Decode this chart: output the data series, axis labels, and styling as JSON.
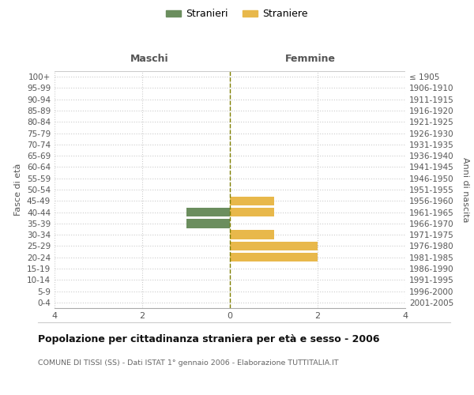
{
  "age_groups": [
    "100+",
    "95-99",
    "90-94",
    "85-89",
    "80-84",
    "75-79",
    "70-74",
    "65-69",
    "60-64",
    "55-59",
    "50-54",
    "45-49",
    "40-44",
    "35-39",
    "30-34",
    "25-29",
    "20-24",
    "15-19",
    "10-14",
    "5-9",
    "0-4"
  ],
  "birth_years": [
    "≤ 1905",
    "1906-1910",
    "1911-1915",
    "1916-1920",
    "1921-1925",
    "1926-1930",
    "1931-1935",
    "1936-1940",
    "1941-1945",
    "1946-1950",
    "1951-1955",
    "1956-1960",
    "1961-1965",
    "1966-1970",
    "1971-1975",
    "1976-1980",
    "1981-1985",
    "1986-1990",
    "1991-1995",
    "1996-2000",
    "2001-2005"
  ],
  "maschi": [
    0,
    0,
    0,
    0,
    0,
    0,
    0,
    0,
    0,
    0,
    0,
    0,
    -1,
    -1,
    0,
    0,
    0,
    0,
    0,
    0,
    0
  ],
  "femmine": [
    0,
    0,
    0,
    0,
    0,
    0,
    0,
    0,
    0,
    0,
    0,
    1,
    1,
    0,
    1,
    2,
    2,
    0,
    0,
    0,
    0
  ],
  "color_maschi": "#6b8e5e",
  "color_femmine": "#e8b84b",
  "xlabel_left": "Maschi",
  "xlabel_right": "Femmine",
  "ylabel_left": "Fasce di età",
  "ylabel_right": "Anni di nascita",
  "xlim": [
    -4,
    4
  ],
  "xticks": [
    -4,
    -2,
    0,
    2,
    4
  ],
  "xticklabels": [
    "4",
    "2",
    "0",
    "2",
    "4"
  ],
  "title": "Popolazione per cittadinanza straniera per età e sesso - 2006",
  "subtitle": "COMUNE DI TISSI (SS) - Dati ISTAT 1° gennaio 2006 - Elaborazione TUTTITALIA.IT",
  "legend_maschi": "Stranieri",
  "legend_femmine": "Straniere",
  "bar_height": 0.8,
  "background_color": "#ffffff",
  "grid_color": "#cccccc",
  "center_line_color": "#808000"
}
